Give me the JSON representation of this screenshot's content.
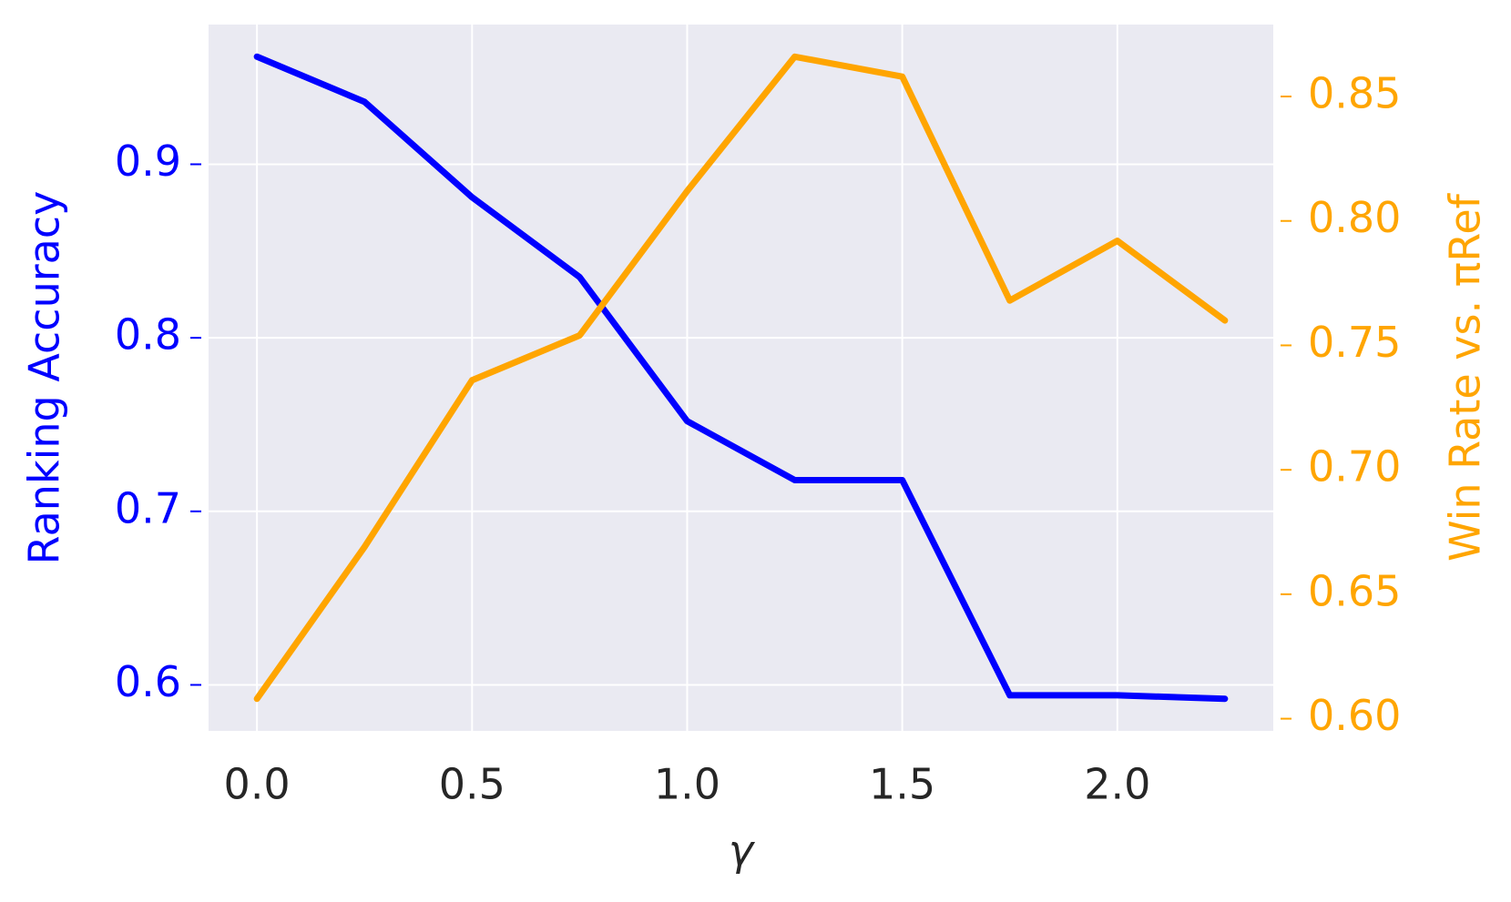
{
  "chart_data": {
    "type": "line",
    "x": [
      0,
      0.25,
      0.5,
      0.75,
      1.0,
      1.25,
      1.5,
      1.75,
      2.0,
      2.25
    ],
    "xlabel": "γ",
    "ylabel": "Ranking Accuracy",
    "y2label": "Win Rate vs. πRef",
    "series": [
      {
        "name": "Ranking Accuracy",
        "color": "#0000ff",
        "values": [
          0.962,
          0.936,
          0.881,
          0.835,
          0.752,
          0.718,
          0.718,
          0.594,
          0.594,
          0.592
        ]
      },
      {
        "name": "Win Rate",
        "color": "#ffa500",
        "axis": "y2",
        "values": [
          0.608,
          0.669,
          0.736,
          0.754,
          0.812,
          0.866,
          0.858,
          0.768,
          0.792,
          0.76
        ]
      }
    ],
    "xlim": [
      -0.1125,
      2.3625
    ],
    "xticks": [
      {
        "value": 0,
        "label": "0.0"
      },
      {
        "value": 0.5,
        "label": "0.5"
      },
      {
        "value": 1.0,
        "label": "1.0"
      },
      {
        "value": 1.5,
        "label": "1.5"
      },
      {
        "value": 2.0,
        "label": "2.0"
      }
    ],
    "ylim": [
      0.5735,
      0.9805
    ],
    "yticks": [
      0.6,
      0.7,
      0.8,
      0.9
    ],
    "y2lim": [
      0.5951,
      0.8789
    ],
    "y2ticks": [
      {
        "value": 0.6,
        "label": "0.60"
      },
      {
        "value": 0.65,
        "label": "0.65"
      },
      {
        "value": 0.7,
        "label": "0.70"
      },
      {
        "value": 0.75,
        "label": "0.75"
      },
      {
        "value": 0.8,
        "label": "0.80"
      },
      {
        "value": 0.85,
        "label": "0.85"
      }
    ],
    "grid": true
  }
}
